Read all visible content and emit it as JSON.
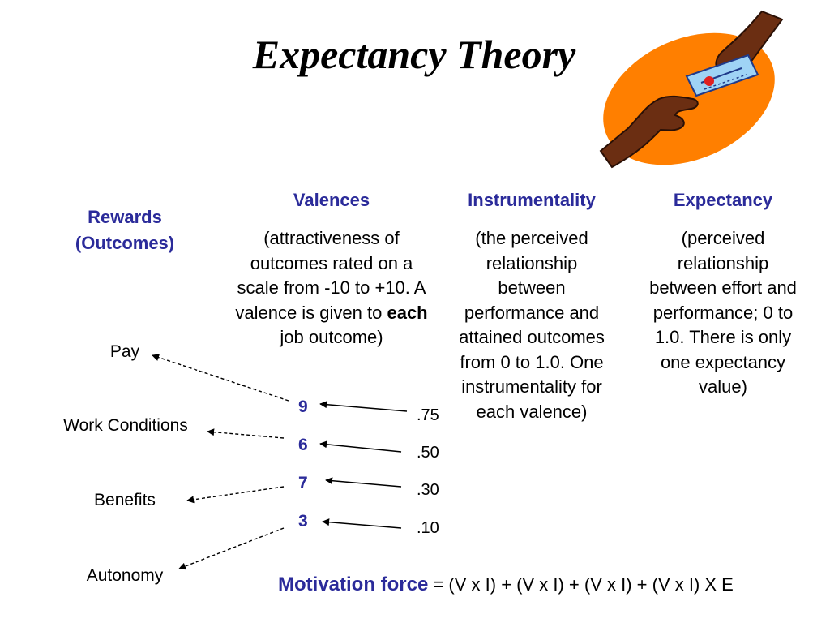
{
  "title": "Expectancy Theory",
  "rewards_heading": [
    "Rewards",
    "(Outcomes)"
  ],
  "valences": {
    "heading": "Valences",
    "desc_before_bold": "(attractiveness of outcomes rated on a scale from -10 to +10.  A valence is given to ",
    "desc_bold": "each",
    "desc_after_bold": " job outcome)",
    "values": [
      "9",
      "6",
      "7",
      "3"
    ]
  },
  "instrumentality": {
    "heading": "Instrumentality",
    "desc": "(the perceived relationship between performance and attained outcomes from 0 to 1.0.  One instrumentality for each valence)",
    "values": [
      ".75",
      ".50",
      ".30",
      ".10"
    ]
  },
  "expectancy": {
    "heading": "Expectancy",
    "desc": "(perceived relationship between effort and performance; 0 to 1.0.  There is only one expectancy value)"
  },
  "outcomes": [
    "Pay",
    "Work Conditions",
    "Benefits",
    "Autonomy"
  ],
  "formula": {
    "label": "Motivation force",
    "expression": " = (V x I) + (V x I) + (V x I) + (V x I) X E"
  },
  "colors": {
    "accent": "#2b2b9a",
    "clipart_orange": "#ff7f00",
    "clipart_skin": "#6b2e12"
  },
  "clipart": "hands-exchanging-card"
}
